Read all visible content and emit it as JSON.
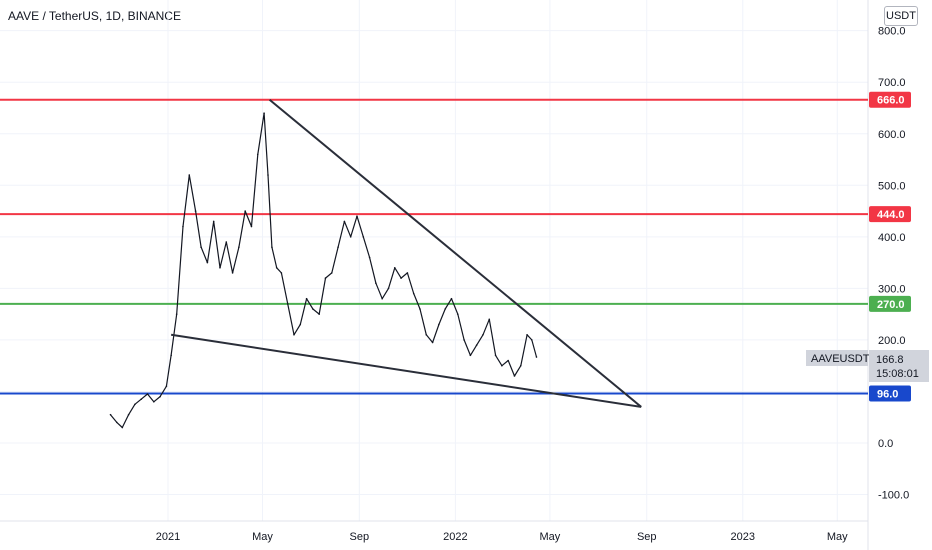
{
  "header": {
    "title": "AAVE / TetherUS, 1D, BINANCE",
    "unit_button": "USDT"
  },
  "colors": {
    "red_level": "#f23645",
    "green_level": "#4caf50",
    "blue_level": "#1848cc",
    "trendline": "#2a2e39",
    "price": "#131722",
    "grid": "#f0f3fa"
  },
  "price_label": {
    "symbol": "AAVEUSDT",
    "value": "166.8",
    "countdown": "15:08:01"
  },
  "chart_data": {
    "type": "line",
    "title": "AAVE / TetherUS, 1D, BINANCE",
    "xlabel": "",
    "ylabel": "",
    "ylim": [
      -150,
      850
    ],
    "y_ticks": [
      "800.0",
      "700.0",
      "600.0",
      "500.0",
      "400.0",
      "300.0",
      "200.0",
      "0.0",
      "-100.0"
    ],
    "y_tick_values": [
      800,
      700,
      600,
      500,
      400,
      300,
      200,
      0,
      -100
    ],
    "x_ticks": [
      "2021",
      "May",
      "Sep",
      "2022",
      "May",
      "Sep",
      "2023",
      "May"
    ],
    "x_tick_dates": [
      "2021-01-01",
      "2021-05-01",
      "2021-09-01",
      "2022-01-01",
      "2022-05-01",
      "2022-09-01",
      "2023-01-01",
      "2023-05-01"
    ],
    "grid": true,
    "horizontal_levels": [
      {
        "value": 666.0,
        "label": "666.0",
        "color": "#f23645"
      },
      {
        "value": 444.0,
        "label": "444.0",
        "color": "#f23645"
      },
      {
        "value": 270.0,
        "label": "270.0",
        "color": "#4caf50"
      },
      {
        "value": 96.0,
        "label": "96.0",
        "color": "#1848cc"
      }
    ],
    "trendlines": [
      {
        "start": {
          "x": "2021-05-10",
          "y": 666
        },
        "end": {
          "x": "2022-08-25",
          "y": 70
        }
      },
      {
        "start": {
          "x": "2021-01-05",
          "y": 210
        },
        "end": {
          "x": "2022-08-25",
          "y": 70
        }
      }
    ],
    "series": [
      {
        "x": [
          "2020-10-20",
          "2020-10-28",
          "2020-11-04",
          "2020-11-12",
          "2020-11-20",
          "2020-11-28",
          "2020-12-06",
          "2020-12-14",
          "2020-12-22",
          "2020-12-30",
          "2021-01-05",
          "2021-01-12",
          "2021-01-20",
          "2021-01-28",
          "2021-02-05",
          "2021-02-12",
          "2021-02-20",
          "2021-02-28",
          "2021-03-08",
          "2021-03-16",
          "2021-03-24",
          "2021-04-01",
          "2021-04-09",
          "2021-04-17",
          "2021-04-25",
          "2021-05-03",
          "2021-05-08",
          "2021-05-13",
          "2021-05-19",
          "2021-05-25",
          "2021-06-02",
          "2021-06-10",
          "2021-06-18",
          "2021-06-26",
          "2021-07-04",
          "2021-07-12",
          "2021-07-20",
          "2021-07-28",
          "2021-08-05",
          "2021-08-13",
          "2021-08-21",
          "2021-08-29",
          "2021-09-06",
          "2021-09-14",
          "2021-09-22",
          "2021-09-30",
          "2021-10-08",
          "2021-10-16",
          "2021-10-24",
          "2021-11-01",
          "2021-11-09",
          "2021-11-17",
          "2021-11-25",
          "2021-12-03",
          "2021-12-11",
          "2021-12-19",
          "2021-12-27",
          "2022-01-04",
          "2022-01-12",
          "2022-01-20",
          "2022-01-28",
          "2022-02-05",
          "2022-02-13",
          "2022-02-21",
          "2022-03-01",
          "2022-03-09",
          "2022-03-17",
          "2022-03-25",
          "2022-04-02",
          "2022-04-08",
          "2022-04-14"
        ],
        "values": [
          55,
          40,
          30,
          55,
          75,
          85,
          95,
          80,
          90,
          110,
          170,
          250,
          420,
          520,
          450,
          380,
          350,
          430,
          340,
          390,
          330,
          380,
          450,
          420,
          560,
          640,
          520,
          380,
          340,
          330,
          270,
          210,
          230,
          280,
          260,
          250,
          320,
          330,
          380,
          430,
          400,
          440,
          400,
          360,
          310,
          280,
          300,
          340,
          320,
          330,
          290,
          260,
          210,
          195,
          230,
          260,
          280,
          250,
          200,
          170,
          190,
          210,
          240,
          170,
          150,
          160,
          130,
          150,
          210,
          200,
          166.8
        ]
      }
    ],
    "last_value": 166.8
  }
}
